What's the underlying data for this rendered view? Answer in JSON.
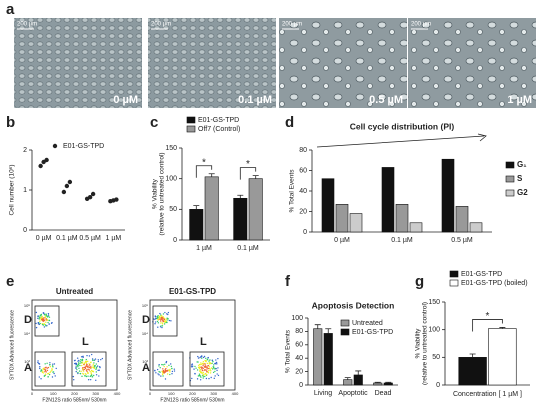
{
  "panel_labels": [
    "a",
    "b",
    "c",
    "d",
    "e",
    "f",
    "g"
  ],
  "micrographs": [
    {
      "scale": "200 µm",
      "label": "0 µM"
    },
    {
      "scale": "200 µm",
      "label": "0.1 µM"
    },
    {
      "scale": "200 µm",
      "label": "0.5 µM"
    },
    {
      "scale": "200 µm",
      "label": "1 µM"
    }
  ],
  "flow_plots": [
    {
      "title": "Untreated",
      "x_label": "F2N12S ratio 585nm/ 530nm",
      "y_label": "SYTOX Advanced fluorescence",
      "gates": [
        "D",
        "L",
        "A"
      ],
      "yticks": [
        "10⁵",
        "10⁴",
        "10³"
      ],
      "xticks": [
        "0",
        "100",
        "200",
        "300",
        "400"
      ]
    },
    {
      "title": "E01-GS-TPD",
      "x_label": "F2N12S ratio 585nm/ 530nm",
      "y_label": "SYTOX Advanced fluorescence",
      "gates": [
        "D",
        "L",
        "A"
      ],
      "yticks": [
        "10⁵",
        "10⁴",
        "10³"
      ],
      "xticks": [
        "0",
        "100",
        "200",
        "300",
        "400"
      ]
    }
  ],
  "chart_data": [
    {
      "type": "dot",
      "y_label": [
        "Cell number (10⁶)"
      ],
      "categories": [
        "0 µM",
        "0.1 µM",
        "0.5 µM",
        "1 µM"
      ],
      "ylim": [
        0,
        2
      ],
      "yticks": [
        0,
        1,
        2
      ],
      "legend": "top",
      "series": [
        {
          "name": "E01-GS-TPD",
          "color": "#222",
          "values": [
            [
              1.6,
              1.7,
              1.75
            ],
            [
              0.95,
              1.1,
              1.2
            ],
            [
              0.78,
              0.82,
              0.9
            ],
            [
              0.72,
              0.74,
              0.76
            ]
          ]
        }
      ]
    },
    {
      "type": "bar",
      "y_label": [
        "% Viability",
        "(relative to untreated control)"
      ],
      "categories": [
        "1 µM",
        "0.1 µM"
      ],
      "ylim": [
        0,
        150
      ],
      "yticks": [
        0,
        50,
        100,
        150
      ],
      "legend": "top",
      "series": [
        {
          "name": "E01-GS-TPD",
          "color": "#111",
          "values": [
            50,
            68
          ],
          "errors": [
            6,
            5
          ]
        },
        {
          "name": "Off7 (Control)",
          "color": "#999",
          "values": [
            103,
            100
          ],
          "errors": [
            5,
            5
          ]
        }
      ],
      "annotations": [
        {
          "text": "*",
          "category": 0
        },
        {
          "text": "*",
          "category": 1
        }
      ]
    },
    {
      "type": "bar",
      "title": "Cell cycle distribution (PI)",
      "y_label": [
        "% Total Events"
      ],
      "categories": [
        "0 µM",
        "0.1 µM",
        "0.5 µM"
      ],
      "ylim": [
        0,
        80
      ],
      "yticks": [
        0,
        20,
        40,
        60,
        80
      ],
      "legend": "right",
      "series": [
        {
          "name": "G₁",
          "color": "#111",
          "values": [
            52,
            63,
            71
          ]
        },
        {
          "name": "S",
          "color": "#999",
          "values": [
            27,
            27,
            25
          ]
        },
        {
          "name": "G2",
          "color": "#ccc",
          "values": [
            18,
            9,
            9
          ]
        }
      ]
    },
    {
      "type": "bar",
      "title": "Apoptosis Detection",
      "y_label": [
        "% Total Events"
      ],
      "categories": [
        "Living",
        "Apoptotic",
        "Dead"
      ],
      "ylim": [
        0,
        100
      ],
      "yticks": [
        0,
        20,
        40,
        60,
        80,
        100
      ],
      "legend": "upper right",
      "series": [
        {
          "name": "Untreated",
          "color": "#999",
          "values": [
            84,
            8,
            3
          ],
          "errors": [
            6,
            3,
            1
          ]
        },
        {
          "name": "E01-GS-TPD",
          "color": "#111",
          "values": [
            77,
            15,
            3
          ],
          "errors": [
            7,
            6,
            1
          ]
        }
      ]
    },
    {
      "type": "bar",
      "x_label": "Concentration [ 1 µM ]",
      "y_label": [
        "% Viability",
        "(relative to untreated control)"
      ],
      "ylim": [
        0,
        150
      ],
      "yticks": [
        0,
        50,
        100,
        150
      ],
      "legend": "top",
      "series": [
        {
          "name": "E01-GS-TPD",
          "color": "#111",
          "values": [
            50
          ],
          "errors": [
            6
          ]
        },
        {
          "name": "E01-GS-TPD (boiled)",
          "color": "#fff",
          "values": [
            102
          ],
          "errors": [
            2
          ]
        }
      ],
      "annotations": [
        {
          "text": "*",
          "category": 0
        }
      ]
    }
  ]
}
